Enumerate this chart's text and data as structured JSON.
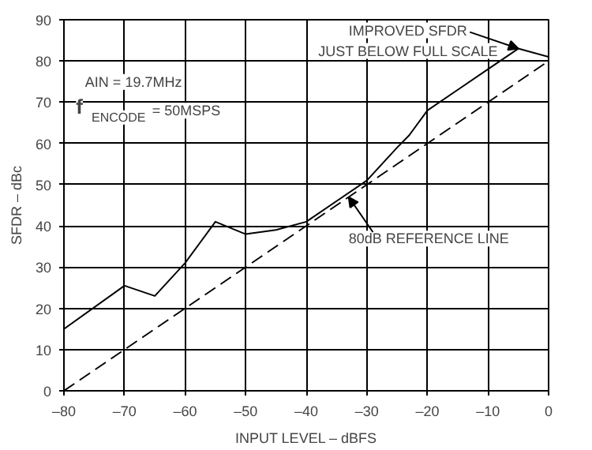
{
  "chart_data": {
    "type": "line",
    "xlabel": "INPUT LEVEL – dBFS",
    "ylabel": "SFDR – dBc",
    "series": [
      {
        "color": "#000000",
        "line_style": "solid",
        "x": [
          -80,
          -70,
          -65,
          -60,
          -55,
          -50,
          -45,
          -40,
          -35,
          -30,
          -25,
          -23,
          -20,
          -15,
          -10,
          -5,
          0
        ],
        "values": [
          15,
          25.5,
          23,
          31,
          41,
          38,
          39,
          41,
          46,
          51,
          59,
          62,
          68,
          73,
          78,
          83,
          81
        ]
      },
      {
        "color": "#000000",
        "line_style": "dashed",
        "x": [
          -80,
          0
        ],
        "values": [
          0,
          80
        ]
      }
    ],
    "xlim": [
      -80,
      0
    ],
    "xticks": [
      {
        "value": -80,
        "label": "–80"
      },
      {
        "value": -70,
        "label": "–70"
      },
      {
        "value": -60,
        "label": "–60"
      },
      {
        "value": -50,
        "label": "–50"
      },
      {
        "value": -40,
        "label": "–40"
      },
      {
        "value": -30,
        "label": "–30"
      },
      {
        "value": -20,
        "label": "–20"
      },
      {
        "value": -10,
        "label": "–10"
      },
      0
    ],
    "ylim": [
      0,
      90
    ],
    "yticks": [
      0,
      10,
      20,
      30,
      40,
      50,
      60,
      70,
      80,
      90
    ],
    "grid": true,
    "marker": "none",
    "annotations": [
      {
        "text": "IMPROVED SFDR\nJUST BELOW FULL SCALE",
        "x": -5,
        "y": 83
      },
      {
        "text": "80dB REFERENCE LINE",
        "x": -33,
        "y": 47
      },
      "AIN = 19.7MHz",
      "f$_{ENCODE}$ = 50MSPS"
    ]
  }
}
